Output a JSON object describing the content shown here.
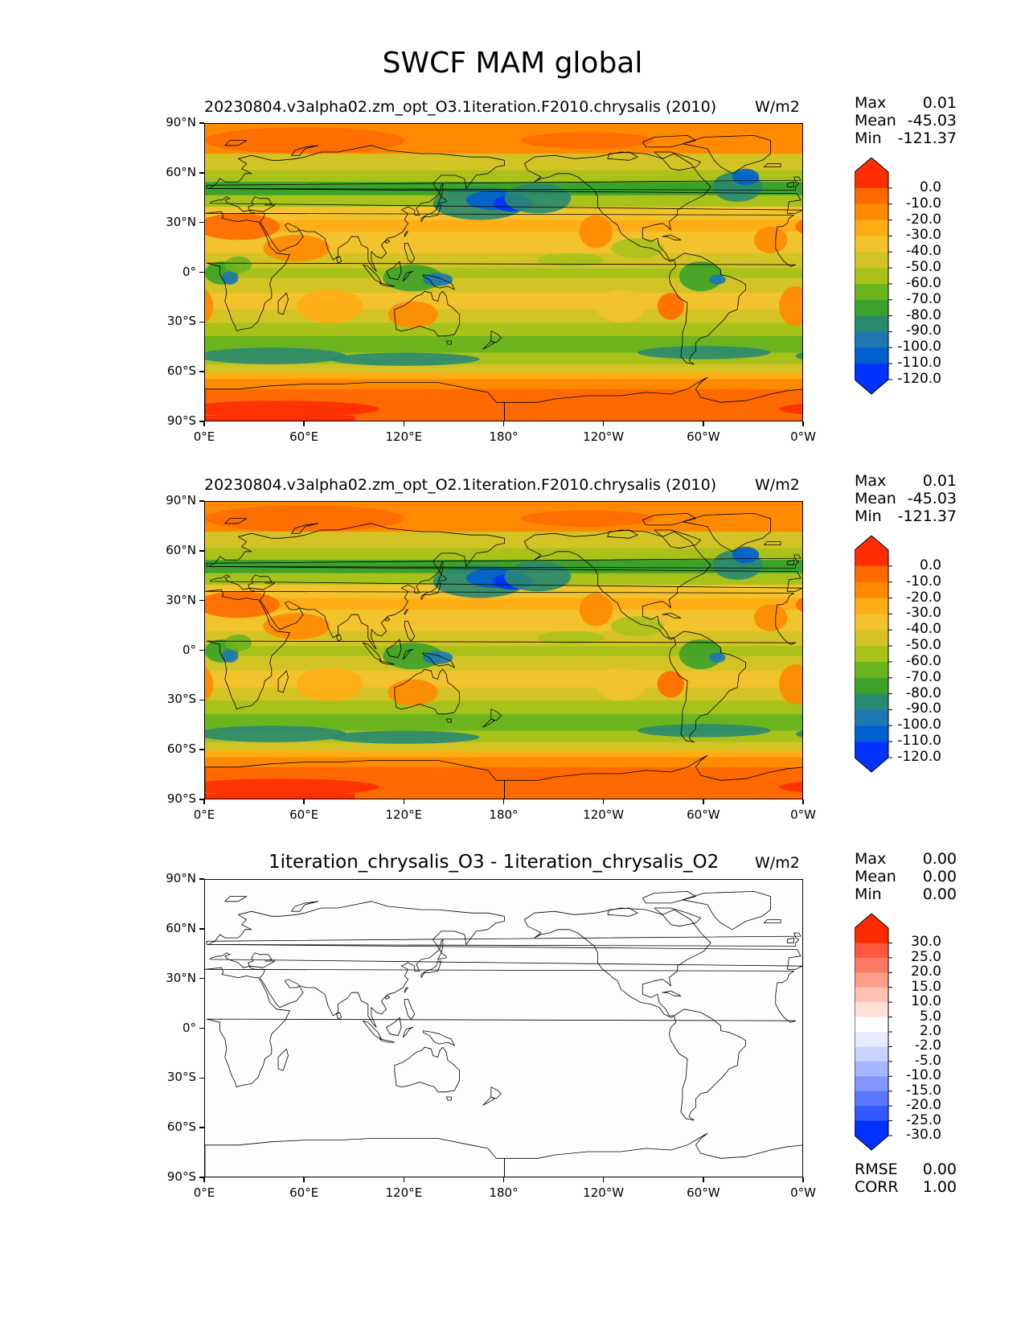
{
  "figure": {
    "title": "SWCF MAM global"
  },
  "axes": {
    "lat_ticks": [
      "90°N",
      "60°N",
      "30°N",
      "0°",
      "30°S",
      "60°S",
      "90°S"
    ],
    "lon_ticks": [
      "0°E",
      "60°E",
      "120°E",
      "180°",
      "120°W",
      "60°W",
      "0°W"
    ]
  },
  "colors": {
    "ocean_levels": [
      "#0032ff",
      "#0060d0",
      "#1e78b4",
      "#2a8a70",
      "#3ca22a",
      "#6bb41e",
      "#a8c21a",
      "#d4c324",
      "#f2c32c",
      "#ffad14",
      "#ff8a00",
      "#ff6a00",
      "#ff2d00"
    ],
    "diff_levels": [
      "#0032ff",
      "#3358ff",
      "#5a77ff",
      "#8197ff",
      "#a6b6ff",
      "#c9d3ff",
      "#e6ebff",
      "#ffffff",
      "#ffe0d8",
      "#ffc1b4",
      "#ff9d8b",
      "#ff7a63",
      "#ff573d",
      "#ff2a00"
    ]
  },
  "panels": [
    {
      "title": "20230804.v3alpha02.zm_opt_O3.1iteration.F2010.chrysalis (2010)",
      "units": "W/m2",
      "stats": [
        {
          "label": "Max",
          "value": "0.01"
        },
        {
          "label": "Mean",
          "value": "-45.03"
        },
        {
          "label": "Min",
          "value": "-121.37"
        }
      ],
      "colorbar_labels": [
        "0.0",
        "-10.0",
        "-20.0",
        "-30.0",
        "-40.0",
        "-50.0",
        "-60.0",
        "-70.0",
        "-80.0",
        "-90.0",
        "-100.0",
        "-110.0",
        "-120.0"
      ]
    },
    {
      "title": "20230804.v3alpha02.zm_opt_O2.1iteration.F2010.chrysalis (2010)",
      "units": "W/m2",
      "stats": [
        {
          "label": "Max",
          "value": "0.01"
        },
        {
          "label": "Mean",
          "value": "-45.03"
        },
        {
          "label": "Min",
          "value": "-121.37"
        }
      ],
      "colorbar_labels": [
        "0.0",
        "-10.0",
        "-20.0",
        "-30.0",
        "-40.0",
        "-50.0",
        "-60.0",
        "-70.0",
        "-80.0",
        "-90.0",
        "-100.0",
        "-110.0",
        "-120.0"
      ]
    },
    {
      "title": "1iteration_chrysalis_O3 - 1iteration_chrysalis_O2",
      "units": "W/m2",
      "stats": [
        {
          "label": "Max",
          "value": "0.00"
        },
        {
          "label": "Mean",
          "value": "0.00"
        },
        {
          "label": "Min",
          "value": "0.00"
        }
      ],
      "colorbar_labels": [
        "30.0",
        "25.0",
        "20.0",
        "15.0",
        "10.0",
        "5.0",
        "2.0",
        "-2.0",
        "-5.0",
        "-10.0",
        "-15.0",
        "-20.0",
        "-25.0",
        "-30.0"
      ],
      "metrics": [
        {
          "label": "RMSE",
          "value": "0.00"
        },
        {
          "label": "CORR",
          "value": "1.00"
        }
      ]
    }
  ]
}
